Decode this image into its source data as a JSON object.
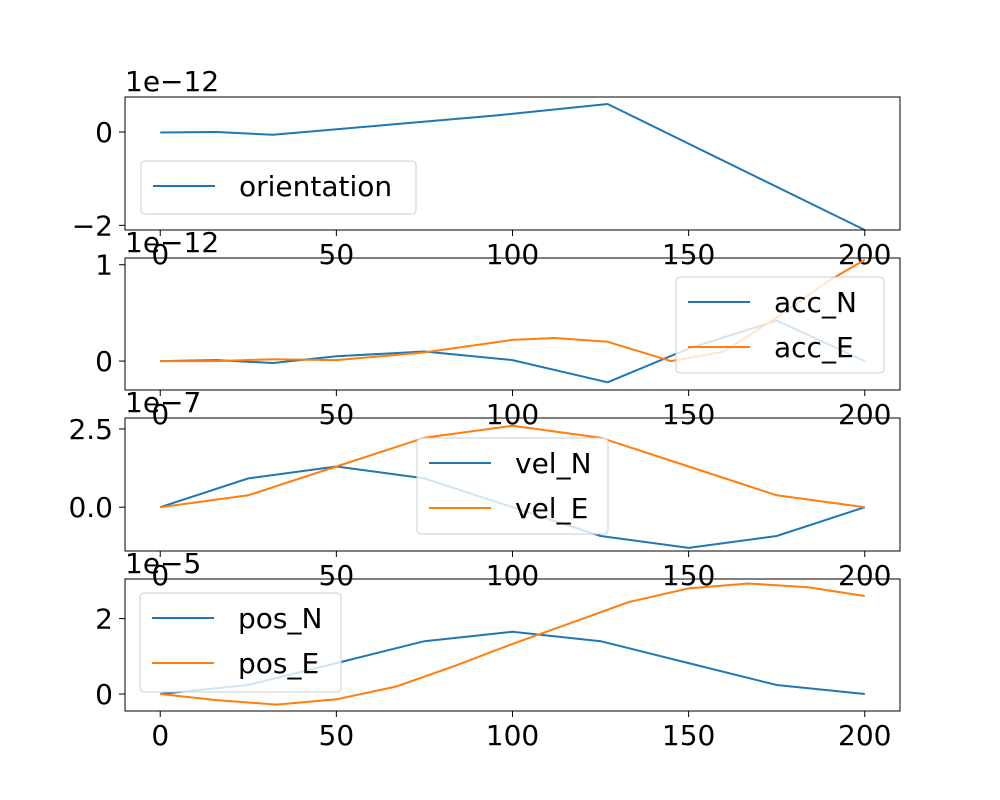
{
  "chart_data": [
    {
      "type": "line",
      "exponent_label": "1e−12",
      "xlim": [
        -10,
        210
      ],
      "ylim": [
        -2.1,
        0.75
      ],
      "xticks": [
        "0",
        "50",
        "100",
        "150",
        "200"
      ],
      "yticks": [
        {
          "value": 0,
          "label": "0"
        },
        {
          "value": -2,
          "label": "−2"
        }
      ],
      "grid": false,
      "legend_position": "lower-left",
      "series": [
        {
          "name": "orientation",
          "color": "#1f77b4",
          "x": [
            0,
            16,
            32,
            64,
            96,
            127,
            200
          ],
          "y": [
            -0.01,
            0.0,
            -0.06,
            0.15,
            0.36,
            0.6,
            -2.1
          ]
        }
      ]
    },
    {
      "type": "line",
      "exponent_label": "1e−12",
      "xlim": [
        -10,
        210
      ],
      "ylim": [
        -0.3,
        1.07
      ],
      "xticks": [
        "0",
        "50",
        "100",
        "150",
        "200"
      ],
      "yticks": [
        {
          "value": 0,
          "label": "0"
        },
        {
          "value": 1,
          "label": "1"
        }
      ],
      "grid": false,
      "legend_position": "right",
      "series": [
        {
          "name": "acc_N",
          "color": "#1f77b4",
          "x": [
            0,
            16,
            32,
            50,
            75,
            100,
            127,
            150,
            175,
            200
          ],
          "y": [
            0.0,
            0.01,
            -0.02,
            0.05,
            0.1,
            0.01,
            -0.22,
            0.13,
            0.42,
            0.0
          ]
        },
        {
          "name": "acc_E",
          "color": "#ff7f0e",
          "x": [
            0,
            16,
            32,
            50,
            75,
            100,
            112,
            127,
            145,
            160,
            175,
            190,
            200
          ],
          "y": [
            0.0,
            0.0,
            0.02,
            0.01,
            0.09,
            0.22,
            0.24,
            0.2,
            0.0,
            0.1,
            0.45,
            0.84,
            1.05
          ]
        }
      ]
    },
    {
      "type": "line",
      "exponent_label": "1e−7",
      "xlim": [
        -10,
        210
      ],
      "ylim": [
        -1.4,
        2.85
      ],
      "xticks": [
        "0",
        "50",
        "100",
        "150",
        "200"
      ],
      "yticks": [
        {
          "value": 0,
          "label": "0.0"
        },
        {
          "value": 2.5,
          "label": "2.5"
        }
      ],
      "grid": false,
      "legend_position": "center",
      "series": [
        {
          "name": "vel_N",
          "color": "#1f77b4",
          "x": [
            0,
            25,
            50,
            75,
            100,
            125,
            150,
            175,
            200
          ],
          "y": [
            0.0,
            0.92,
            1.3,
            0.92,
            0.0,
            -0.92,
            -1.3,
            -0.92,
            0.0
          ]
        },
        {
          "name": "vel_E",
          "color": "#ff7f0e",
          "x": [
            0,
            25,
            50,
            75,
            100,
            125,
            150,
            175,
            200
          ],
          "y": [
            0.0,
            0.38,
            1.3,
            2.22,
            2.6,
            2.22,
            1.3,
            0.38,
            0.0
          ]
        }
      ]
    },
    {
      "type": "line",
      "exponent_label": "1e−5",
      "xlim": [
        -10,
        210
      ],
      "ylim": [
        -0.45,
        3.05
      ],
      "xticks": [
        "0",
        "50",
        "100",
        "150",
        "200"
      ],
      "yticks": [
        {
          "value": 0,
          "label": "0"
        },
        {
          "value": 2,
          "label": "2"
        }
      ],
      "grid": false,
      "legend_position": "upper-left",
      "series": [
        {
          "name": "pos_N",
          "color": "#1f77b4",
          "x": [
            0,
            25,
            50,
            75,
            100,
            125,
            150,
            175,
            200
          ],
          "y": [
            0.0,
            0.24,
            0.82,
            1.4,
            1.65,
            1.4,
            0.82,
            0.24,
            0.0
          ]
        },
        {
          "name": "pos_E",
          "color": "#ff7f0e",
          "x": [
            0,
            16,
            33,
            50,
            67,
            84,
            100,
            117,
            133,
            150,
            167,
            184,
            200
          ],
          "y": [
            0.0,
            -0.16,
            -0.28,
            -0.14,
            0.2,
            0.76,
            1.33,
            1.9,
            2.44,
            2.8,
            2.93,
            2.83,
            2.6
          ]
        }
      ]
    }
  ]
}
